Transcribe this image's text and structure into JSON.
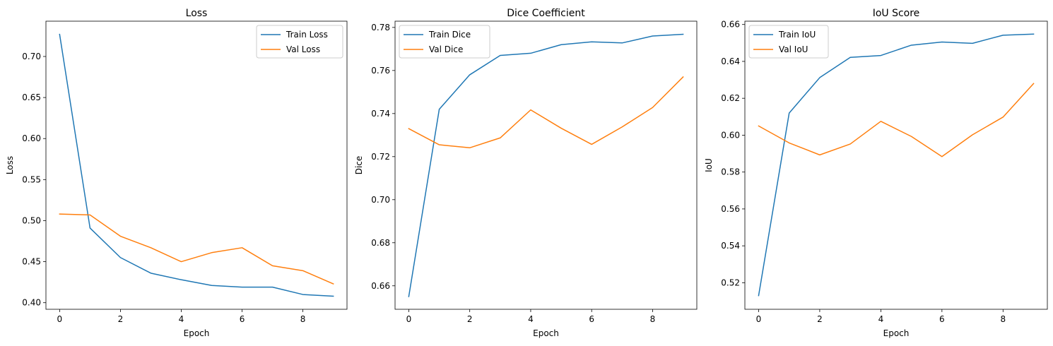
{
  "chart_data": [
    {
      "type": "line",
      "title": "Loss",
      "xlabel": "Epoch",
      "ylabel": "Loss",
      "x": [
        0,
        1,
        2,
        3,
        4,
        5,
        6,
        7,
        8,
        9
      ],
      "xlim": [
        -0.45,
        9.45
      ],
      "ylim": [
        0.392,
        0.743
      ],
      "xticks": [
        0,
        2,
        4,
        6,
        8
      ],
      "yticks": [
        0.4,
        0.45,
        0.5,
        0.55,
        0.6,
        0.65,
        0.7
      ],
      "ytick_labels": [
        "0.40",
        "0.45",
        "0.50",
        "0.55",
        "0.60",
        "0.65",
        "0.70"
      ],
      "legend": "top-right",
      "grid": false,
      "series": [
        {
          "name": "Train Loss",
          "color": "#1f77b4",
          "values": [
            0.727,
            0.491,
            0.455,
            0.436,
            0.428,
            0.421,
            0.419,
            0.419,
            0.41,
            0.408
          ]
        },
        {
          "name": "Val Loss",
          "color": "#ff7f0e",
          "values": [
            0.508,
            0.507,
            0.481,
            0.467,
            0.45,
            0.461,
            0.467,
            0.445,
            0.439,
            0.423
          ]
        }
      ]
    },
    {
      "type": "line",
      "title": "Dice Coefficient",
      "xlabel": "Epoch",
      "ylabel": "Dice",
      "x": [
        0,
        1,
        2,
        3,
        4,
        5,
        6,
        7,
        8,
        9
      ],
      "xlim": [
        -0.45,
        9.45
      ],
      "ylim": [
        0.6491,
        0.7829
      ],
      "xticks": [
        0,
        2,
        4,
        6,
        8
      ],
      "yticks": [
        0.66,
        0.68,
        0.7,
        0.72,
        0.74,
        0.76,
        0.78
      ],
      "ytick_labels": [
        "0.66",
        "0.68",
        "0.70",
        "0.72",
        "0.74",
        "0.76",
        "0.78"
      ],
      "legend": "top-left",
      "grid": false,
      "series": [
        {
          "name": "Train Dice",
          "color": "#1f77b4",
          "values": [
            0.655,
            0.742,
            0.758,
            0.767,
            0.768,
            0.772,
            0.7733,
            0.7728,
            0.776,
            0.7768
          ]
        },
        {
          "name": "Val Dice",
          "color": "#ff7f0e",
          "values": [
            0.733,
            0.7255,
            0.7241,
            0.7287,
            0.7417,
            0.7332,
            0.7257,
            0.7338,
            0.7428,
            0.757
          ]
        }
      ]
    },
    {
      "type": "line",
      "title": "IoU Score",
      "xlabel": "Epoch",
      "ylabel": "IoU",
      "x": [
        0,
        1,
        2,
        3,
        4,
        5,
        6,
        7,
        8,
        9
      ],
      "xlim": [
        -0.45,
        9.45
      ],
      "ylim": [
        0.5056,
        0.6618
      ],
      "xticks": [
        0,
        2,
        4,
        6,
        8
      ],
      "yticks": [
        0.52,
        0.54,
        0.56,
        0.58,
        0.6,
        0.62,
        0.64,
        0.66
      ],
      "ytick_labels": [
        "0.52",
        "0.54",
        "0.56",
        "0.58",
        "0.60",
        "0.62",
        "0.64",
        "0.66"
      ],
      "legend": "top-left",
      "grid": false,
      "series": [
        {
          "name": "Train IoU",
          "color": "#1f77b4",
          "values": [
            0.513,
            0.612,
            0.6312,
            0.6422,
            0.6432,
            0.6488,
            0.6505,
            0.6498,
            0.6542,
            0.6548
          ]
        },
        {
          "name": "Val IoU",
          "color": "#ff7f0e",
          "values": [
            0.605,
            0.5958,
            0.5893,
            0.5952,
            0.6075,
            0.5993,
            0.5884,
            0.6002,
            0.6098,
            0.628
          ]
        }
      ]
    }
  ]
}
